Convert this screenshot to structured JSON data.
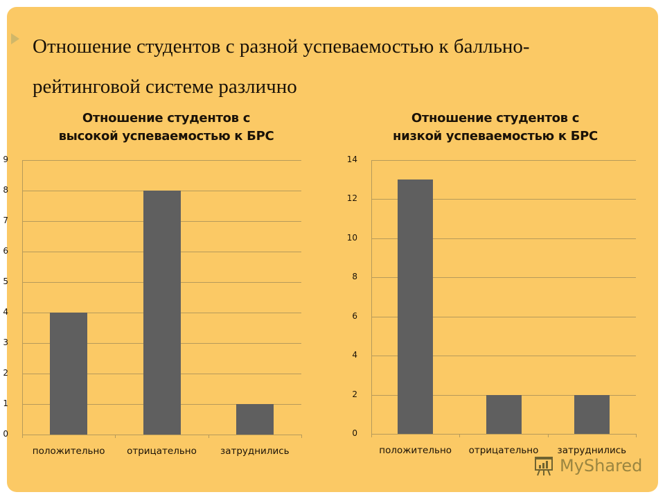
{
  "slide": {
    "heading": "Отношение студентов с разной успеваемостью к балльно-рейтинговой системе различно",
    "heading_line1": "Отношение студентов с разной успеваемостью к балльно-",
    "heading_line2": "рейтинговой системе различно",
    "background_color": "#fbc965",
    "bar_color": "#5f5f5f"
  },
  "watermark": {
    "text": "MyShared",
    "icon": "presentation-board-icon"
  },
  "chart_data": [
    {
      "type": "bar",
      "title": "Отношение студентов с высокой успеваемостью к БРС",
      "title_line1": "Отношение студентов с",
      "title_line2": "высокой успеваемостью к БРС",
      "categories": [
        "положительно",
        "отрицательно",
        "затруднились"
      ],
      "values": [
        4,
        8,
        1
      ],
      "xlabel": "",
      "ylabel": "",
      "ylim": [
        0,
        9
      ],
      "yticks": [
        "0",
        "1",
        "2",
        "3",
        "4",
        "5",
        "6",
        "7",
        "8",
        "9"
      ],
      "grid": true,
      "legend": null
    },
    {
      "type": "bar",
      "title": "Отношение студентов с низкой успеваемостью к БРС",
      "title_line1": "Отношение студентов с",
      "title_line2": "низкой успеваемостью к БРС",
      "categories": [
        "положительно",
        "отрицательно",
        "затруднились"
      ],
      "values": [
        13,
        2,
        2
      ],
      "xlabel": "",
      "ylabel": "",
      "ylim": [
        0,
        14
      ],
      "yticks": [
        "0",
        "2",
        "4",
        "6",
        "8",
        "10",
        "12",
        "14"
      ],
      "grid": true,
      "legend": null
    }
  ]
}
